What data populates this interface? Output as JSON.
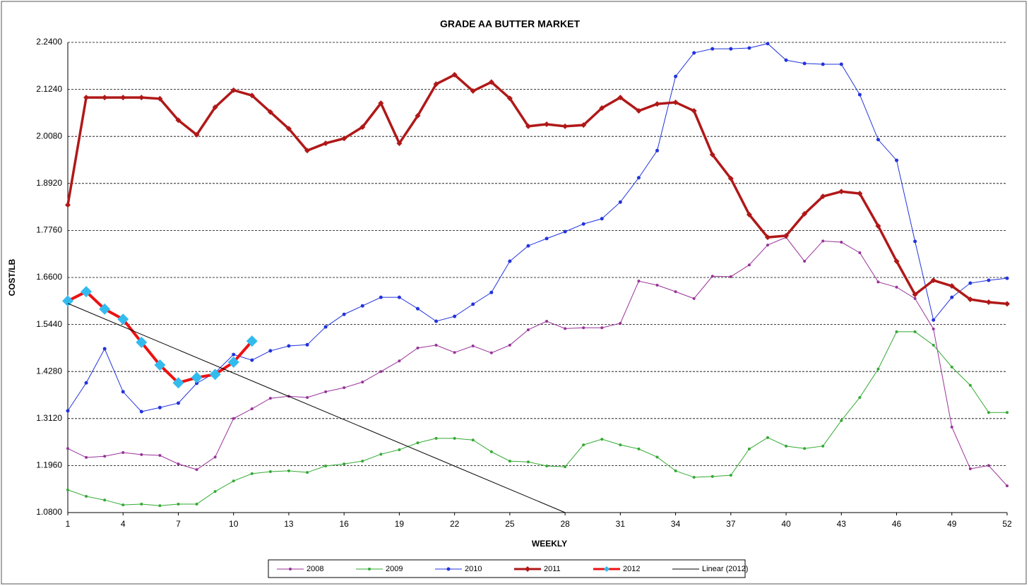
{
  "chart_data": {
    "type": "line",
    "title": "GRADE  AA  BUTTER  MARKET",
    "x_label": "WEEKLY",
    "y_label": "COST/LB",
    "x": [
      1,
      2,
      3,
      4,
      5,
      6,
      7,
      8,
      9,
      10,
      11,
      12,
      13,
      14,
      15,
      16,
      17,
      18,
      19,
      20,
      21,
      22,
      23,
      24,
      25,
      26,
      27,
      28,
      29,
      30,
      31,
      32,
      33,
      34,
      35,
      36,
      37,
      38,
      39,
      40,
      41,
      42,
      43,
      44,
      45,
      46,
      47,
      48,
      49,
      50,
      51,
      52
    ],
    "xlim": [
      1,
      52
    ],
    "xticks": [
      1,
      4,
      7,
      10,
      13,
      16,
      19,
      22,
      25,
      28,
      31,
      34,
      37,
      40,
      43,
      46,
      49,
      52
    ],
    "ylim": [
      1.08,
      2.24
    ],
    "yticks": [
      {
        "value": 1.08,
        "label": "1.0800"
      },
      {
        "value": 1.196,
        "label": "1.1960"
      },
      {
        "value": 1.312,
        "label": "1.3120"
      },
      {
        "value": 1.428,
        "label": "1.4280"
      },
      {
        "value": 1.544,
        "label": "1.5440"
      },
      {
        "value": 1.66,
        "label": "1.6600"
      },
      {
        "value": 1.776,
        "label": "1.7760"
      },
      {
        "value": 1.892,
        "label": "1.8920"
      },
      {
        "value": 2.008,
        "label": "2.0080"
      },
      {
        "value": 2.124,
        "label": "2.1240"
      },
      {
        "value": 2.24,
        "label": "2.2400"
      }
    ],
    "grid": true,
    "series": [
      {
        "name": "2008",
        "color": "#993399",
        "values": [
          1.238,
          1.216,
          1.219,
          1.228,
          1.223,
          1.221,
          1.2,
          1.186,
          1.217,
          1.312,
          1.336,
          1.362,
          1.367,
          1.364,
          1.378,
          1.388,
          1.402,
          1.428,
          1.454,
          1.486,
          1.493,
          1.475,
          1.491,
          1.474,
          1.493,
          1.531,
          1.552,
          1.534,
          1.536,
          1.536,
          1.547,
          1.651,
          1.641,
          1.625,
          1.608,
          1.663,
          1.662,
          1.691,
          1.74,
          1.759,
          1.7,
          1.75,
          1.747,
          1.721,
          1.649,
          1.636,
          1.608,
          1.533,
          1.291,
          1.188,
          1.196,
          1.146
        ]
      },
      {
        "name": "2009",
        "color": "#33aa33",
        "values": [
          1.136,
          1.12,
          1.111,
          1.099,
          1.101,
          1.097,
          1.101,
          1.101,
          1.132,
          1.158,
          1.176,
          1.181,
          1.183,
          1.179,
          1.195,
          1.2,
          1.207,
          1.224,
          1.235,
          1.252,
          1.263,
          1.263,
          1.259,
          1.23,
          1.207,
          1.205,
          1.195,
          1.193,
          1.247,
          1.261,
          1.247,
          1.237,
          1.217,
          1.183,
          1.167,
          1.169,
          1.172,
          1.237,
          1.265,
          1.244,
          1.238,
          1.244,
          1.307,
          1.364,
          1.434,
          1.526,
          1.526,
          1.493,
          1.439,
          1.394,
          1.327,
          1.327
        ]
      },
      {
        "name": "2010",
        "color": "#2233dd",
        "values": [
          1.331,
          1.4,
          1.484,
          1.378,
          1.329,
          1.339,
          1.35,
          1.399,
          1.425,
          1.47,
          1.456,
          1.479,
          1.491,
          1.494,
          1.538,
          1.569,
          1.59,
          1.611,
          1.611,
          1.583,
          1.552,
          1.564,
          1.594,
          1.623,
          1.7,
          1.738,
          1.756,
          1.773,
          1.792,
          1.805,
          1.846,
          1.906,
          1.973,
          2.156,
          2.214,
          2.224,
          2.224,
          2.226,
          2.237,
          2.196,
          2.188,
          2.186,
          2.186,
          2.111,
          2.0,
          1.949,
          1.749,
          1.555,
          1.611,
          1.646,
          1.653,
          1.658
        ]
      },
      {
        "name": "2011",
        "color": "#b01818",
        "values": [
          1.839,
          2.104,
          2.104,
          2.104,
          2.104,
          2.101,
          2.048,
          2.012,
          2.08,
          2.122,
          2.109,
          2.068,
          2.027,
          1.973,
          1.991,
          2.003,
          2.031,
          2.09,
          1.991,
          2.059,
          2.137,
          2.16,
          2.12,
          2.142,
          2.102,
          2.033,
          2.038,
          2.033,
          2.036,
          2.078,
          2.104,
          2.071,
          2.088,
          2.092,
          2.071,
          1.963,
          1.904,
          1.815,
          1.759,
          1.763,
          1.817,
          1.86,
          1.872,
          1.867,
          1.787,
          1.7,
          1.618,
          1.653,
          1.639,
          1.606,
          1.599,
          1.595
        ]
      },
      {
        "name": "2012",
        "color": "#ee1111",
        "marker_color": "#33bbee",
        "x": [
          1,
          2,
          3,
          4,
          5,
          6,
          7,
          8,
          9,
          10,
          11
        ],
        "values": [
          1.602,
          1.625,
          1.582,
          1.557,
          1.5,
          1.444,
          1.4,
          1.413,
          1.421,
          1.451,
          1.503
        ]
      },
      {
        "name": "Linear (2012)",
        "color": "#000000",
        "x": [
          1,
          28
        ],
        "values": [
          1.596,
          1.08
        ]
      }
    ]
  }
}
